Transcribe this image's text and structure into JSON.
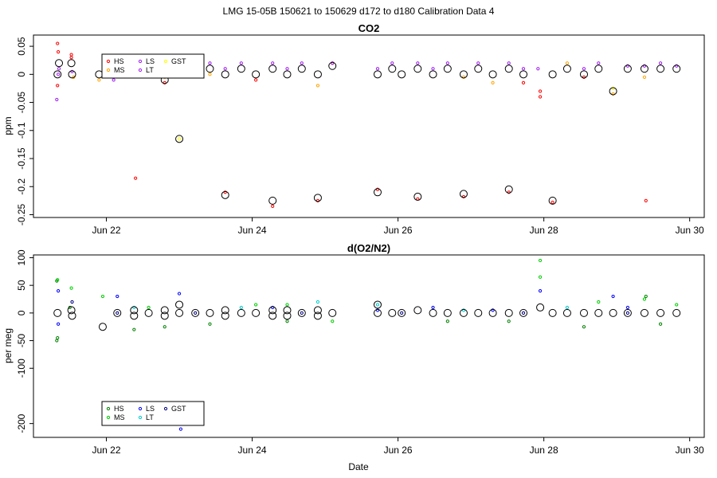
{
  "figure": {
    "title": "LMG   15-05B     150621 to 150629     d172 to d180    Calibration Data 4",
    "xlabel": "Date"
  },
  "chart_data": [
    {
      "type": "scatter",
      "title": "CO2",
      "ylabel": "ppm",
      "ylim": [
        -0.255,
        0.07
      ],
      "yticks": [
        0.05,
        0.0,
        -0.05,
        -0.1,
        -0.15,
        -0.2,
        -0.25
      ],
      "ytick_labels": [
        "0.05",
        "0",
        "-0.05",
        "-0.1",
        "-0.15",
        "-0.2",
        "-0.25"
      ],
      "xlim": [
        21.0,
        30.2
      ],
      "xticks": [
        22,
        24,
        26,
        28,
        30
      ],
      "xtick_labels": [
        "Jun 22",
        "Jun 24",
        "Jun 26",
        "Jun 28",
        "Jun 30"
      ],
      "legend": {
        "position": "top-left",
        "entries": [
          {
            "name": "HS",
            "color": "#ff0000"
          },
          {
            "name": "MS",
            "color": "#ffa500"
          },
          {
            "name": "LS",
            "color": "#a020f0"
          },
          {
            "name": "LT",
            "color": "#a020f0"
          },
          {
            "name": "GST",
            "color": "#ffff00"
          }
        ]
      },
      "means": [
        {
          "x": 21.33,
          "y": 0.0
        },
        {
          "x": 21.35,
          "y": 0.02
        },
        {
          "x": 21.52,
          "y": 0.02
        },
        {
          "x": 21.53,
          "y": 0.0
        },
        {
          "x": 21.9,
          "y": 0.0
        },
        {
          "x": 22.1,
          "y": 0.0
        },
        {
          "x": 22.8,
          "y": -0.01
        },
        {
          "x": 23.0,
          "y": -0.115
        },
        {
          "x": 23.22,
          "y": 0.0
        },
        {
          "x": 23.42,
          "y": 0.01
        },
        {
          "x": 23.63,
          "y": -0.215
        },
        {
          "x": 23.63,
          "y": 0.0
        },
        {
          "x": 23.85,
          "y": 0.01
        },
        {
          "x": 24.05,
          "y": 0.0
        },
        {
          "x": 24.28,
          "y": -0.225
        },
        {
          "x": 24.28,
          "y": 0.01
        },
        {
          "x": 24.48,
          "y": 0.0
        },
        {
          "x": 24.68,
          "y": 0.01
        },
        {
          "x": 24.9,
          "y": -0.22
        },
        {
          "x": 24.9,
          "y": 0.0
        },
        {
          "x": 25.1,
          "y": 0.015
        },
        {
          "x": 25.72,
          "y": -0.21
        },
        {
          "x": 25.72,
          "y": 0.0
        },
        {
          "x": 25.92,
          "y": 0.01
        },
        {
          "x": 26.05,
          "y": 0.0
        },
        {
          "x": 26.27,
          "y": -0.218
        },
        {
          "x": 26.27,
          "y": 0.01
        },
        {
          "x": 26.48,
          "y": 0.0
        },
        {
          "x": 26.68,
          "y": 0.01
        },
        {
          "x": 26.9,
          "y": -0.213
        },
        {
          "x": 26.9,
          "y": 0.0
        },
        {
          "x": 27.1,
          "y": 0.01
        },
        {
          "x": 27.3,
          "y": 0.0
        },
        {
          "x": 27.52,
          "y": -0.205
        },
        {
          "x": 27.52,
          "y": 0.01
        },
        {
          "x": 27.72,
          "y": 0.0
        },
        {
          "x": 28.12,
          "y": -0.225
        },
        {
          "x": 28.12,
          "y": 0.0
        },
        {
          "x": 28.32,
          "y": 0.01
        },
        {
          "x": 28.55,
          "y": 0.0
        },
        {
          "x": 28.75,
          "y": 0.01
        },
        {
          "x": 28.95,
          "y": -0.03
        },
        {
          "x": 29.15,
          "y": 0.01
        },
        {
          "x": 29.38,
          "y": 0.01
        },
        {
          "x": 29.6,
          "y": 0.01
        },
        {
          "x": 29.82,
          "y": 0.01
        }
      ],
      "series": [
        {
          "name": "HS",
          "color": "#ff0000",
          "points": [
            {
              "x": 21.33,
              "y": 0.055
            },
            {
              "x": 21.34,
              "y": 0.04
            },
            {
              "x": 21.33,
              "y": -0.02
            },
            {
              "x": 21.52,
              "y": 0.035
            },
            {
              "x": 21.52,
              "y": 0.03
            },
            {
              "x": 22.4,
              "y": -0.185
            },
            {
              "x": 22.8,
              "y": -0.015
            },
            {
              "x": 23.63,
              "y": -0.21
            },
            {
              "x": 24.28,
              "y": -0.235
            },
            {
              "x": 24.9,
              "y": -0.225
            },
            {
              "x": 25.72,
              "y": -0.205
            },
            {
              "x": 26.27,
              "y": -0.222
            },
            {
              "x": 26.9,
              "y": -0.218
            },
            {
              "x": 27.52,
              "y": -0.21
            },
            {
              "x": 27.72,
              "y": -0.015
            },
            {
              "x": 28.12,
              "y": -0.228
            },
            {
              "x": 27.95,
              "y": -0.03
            },
            {
              "x": 27.95,
              "y": -0.04
            },
            {
              "x": 28.55,
              "y": -0.005
            },
            {
              "x": 29.4,
              "y": -0.225
            },
            {
              "x": 23.05,
              "y": 0.005
            },
            {
              "x": 24.05,
              "y": -0.01
            },
            {
              "x": 25.1,
              "y": 0.02
            }
          ]
        },
        {
          "name": "MS",
          "color": "#ffa500",
          "points": [
            {
              "x": 21.55,
              "y": -0.005
            },
            {
              "x": 21.9,
              "y": -0.01
            },
            {
              "x": 22.8,
              "y": -0.005
            },
            {
              "x": 23.42,
              "y": 0.0
            },
            {
              "x": 24.9,
              "y": -0.02
            },
            {
              "x": 26.9,
              "y": -0.005
            },
            {
              "x": 27.3,
              "y": -0.015
            },
            {
              "x": 28.95,
              "y": -0.035
            },
            {
              "x": 29.38,
              "y": -0.005
            },
            {
              "x": 28.32,
              "y": 0.02
            }
          ]
        },
        {
          "name": "LS",
          "color": "#a020f0",
          "points": [
            {
              "x": 21.32,
              "y": -0.045
            },
            {
              "x": 21.34,
              "y": 0.0
            },
            {
              "x": 21.53,
              "y": 0.005
            },
            {
              "x": 22.1,
              "y": -0.01
            },
            {
              "x": 23.42,
              "y": 0.02
            },
            {
              "x": 23.85,
              "y": 0.02
            },
            {
              "x": 24.28,
              "y": 0.02
            },
            {
              "x": 24.68,
              "y": 0.02
            },
            {
              "x": 25.1,
              "y": 0.02
            },
            {
              "x": 25.92,
              "y": 0.02
            },
            {
              "x": 26.27,
              "y": 0.02
            },
            {
              "x": 26.68,
              "y": 0.02
            },
            {
              "x": 27.1,
              "y": 0.02
            },
            {
              "x": 27.52,
              "y": 0.02
            },
            {
              "x": 27.92,
              "y": 0.01
            },
            {
              "x": 28.75,
              "y": 0.02
            },
            {
              "x": 29.15,
              "y": 0.015
            },
            {
              "x": 29.6,
              "y": 0.02
            },
            {
              "x": 29.82,
              "y": 0.015
            }
          ]
        },
        {
          "name": "LT",
          "color": "#a020f0",
          "points": [
            {
              "x": 21.35,
              "y": 0.01
            },
            {
              "x": 22.1,
              "y": 0.01
            },
            {
              "x": 23.63,
              "y": 0.01
            },
            {
              "x": 24.48,
              "y": 0.01
            },
            {
              "x": 25.72,
              "y": 0.01
            },
            {
              "x": 26.48,
              "y": 0.01
            },
            {
              "x": 27.72,
              "y": 0.01
            },
            {
              "x": 28.55,
              "y": 0.01
            },
            {
              "x": 29.38,
              "y": 0.015
            }
          ]
        },
        {
          "name": "GST",
          "color": "#ffff00",
          "points": [
            {
              "x": 22.0,
              "y": 0.0
            },
            {
              "x": 23.0,
              "y": -0.115
            },
            {
              "x": 28.95,
              "y": -0.025
            }
          ]
        }
      ]
    },
    {
      "type": "scatter",
      "title": "d(O2/N2)",
      "ylabel": "per meg",
      "ylim": [
        -225,
        105
      ],
      "yticks": [
        100,
        50,
        0,
        -50,
        -100,
        -200
      ],
      "ytick_labels": [
        "100",
        "50",
        "0",
        "-50",
        "-100",
        "-200"
      ],
      "xlim": [
        21.0,
        30.2
      ],
      "xticks": [
        22,
        24,
        26,
        28,
        30
      ],
      "xtick_labels": [
        "Jun 22",
        "Jun 24",
        "Jun 26",
        "Jun 28",
        "Jun 30"
      ],
      "legend": {
        "position": "bottom-left",
        "entries": [
          {
            "name": "HS",
            "color": "#008000"
          },
          {
            "name": "MS",
            "color": "#00cc00"
          },
          {
            "name": "LS",
            "color": "#0000ff"
          },
          {
            "name": "LT",
            "color": "#00cccc"
          },
          {
            "name": "GST",
            "color": "#000080"
          }
        ]
      },
      "means": [
        {
          "x": 21.33,
          "y": 0
        },
        {
          "x": 21.52,
          "y": 5
        },
        {
          "x": 21.53,
          "y": -5
        },
        {
          "x": 21.95,
          "y": -25
        },
        {
          "x": 22.15,
          "y": 0
        },
        {
          "x": 22.38,
          "y": 5
        },
        {
          "x": 22.38,
          "y": -5
        },
        {
          "x": 22.58,
          "y": 0
        },
        {
          "x": 22.8,
          "y": 5
        },
        {
          "x": 22.8,
          "y": -5
        },
        {
          "x": 23.0,
          "y": 15
        },
        {
          "x": 23.0,
          "y": 0
        },
        {
          "x": 23.22,
          "y": 0
        },
        {
          "x": 23.42,
          "y": 0
        },
        {
          "x": 23.63,
          "y": 5
        },
        {
          "x": 23.63,
          "y": -5
        },
        {
          "x": 23.85,
          "y": 0
        },
        {
          "x": 24.05,
          "y": 0
        },
        {
          "x": 24.28,
          "y": 5
        },
        {
          "x": 24.28,
          "y": -5
        },
        {
          "x": 24.48,
          "y": 5
        },
        {
          "x": 24.48,
          "y": -5
        },
        {
          "x": 24.68,
          "y": 0
        },
        {
          "x": 24.9,
          "y": 5
        },
        {
          "x": 24.9,
          "y": -5
        },
        {
          "x": 25.1,
          "y": 0
        },
        {
          "x": 25.72,
          "y": 15
        },
        {
          "x": 25.72,
          "y": 0
        },
        {
          "x": 25.92,
          "y": 0
        },
        {
          "x": 26.05,
          "y": 0
        },
        {
          "x": 26.27,
          "y": 5
        },
        {
          "x": 26.48,
          "y": 0
        },
        {
          "x": 26.68,
          "y": 0
        },
        {
          "x": 26.9,
          "y": 0
        },
        {
          "x": 27.1,
          "y": 0
        },
        {
          "x": 27.3,
          "y": 0
        },
        {
          "x": 27.52,
          "y": 0
        },
        {
          "x": 27.72,
          "y": 0
        },
        {
          "x": 27.95,
          "y": 10
        },
        {
          "x": 28.12,
          "y": 0
        },
        {
          "x": 28.32,
          "y": 0
        },
        {
          "x": 28.55,
          "y": 0
        },
        {
          "x": 28.75,
          "y": 0
        },
        {
          "x": 28.95,
          "y": 0
        },
        {
          "x": 29.15,
          "y": 0
        },
        {
          "x": 29.38,
          "y": 0
        },
        {
          "x": 29.6,
          "y": 0
        },
        {
          "x": 29.82,
          "y": 0
        }
      ],
      "series": [
        {
          "name": "HS",
          "color": "#008000",
          "points": [
            {
              "x": 21.32,
              "y": 58
            },
            {
              "x": 21.32,
              "y": -50
            },
            {
              "x": 21.33,
              "y": -45
            },
            {
              "x": 21.5,
              "y": 10
            },
            {
              "x": 22.38,
              "y": -30
            },
            {
              "x": 22.8,
              "y": -25
            },
            {
              "x": 23.42,
              "y": -20
            },
            {
              "x": 24.48,
              "y": -15
            },
            {
              "x": 26.68,
              "y": -15
            },
            {
              "x": 27.52,
              "y": -15
            },
            {
              "x": 28.55,
              "y": -25
            },
            {
              "x": 29.4,
              "y": 30
            },
            {
              "x": 29.6,
              "y": -20
            }
          ]
        },
        {
          "name": "MS",
          "color": "#00cc00",
          "points": [
            {
              "x": 21.33,
              "y": 60
            },
            {
              "x": 21.52,
              "y": 45
            },
            {
              "x": 21.95,
              "y": 30
            },
            {
              "x": 22.58,
              "y": 10
            },
            {
              "x": 24.05,
              "y": 15
            },
            {
              "x": 24.48,
              "y": 15
            },
            {
              "x": 25.1,
              "y": -15
            },
            {
              "x": 27.95,
              "y": 95
            },
            {
              "x": 27.95,
              "y": 65
            },
            {
              "x": 28.75,
              "y": 20
            },
            {
              "x": 29.38,
              "y": 25
            },
            {
              "x": 29.82,
              "y": 15
            }
          ]
        },
        {
          "name": "LS",
          "color": "#0000ff",
          "points": [
            {
              "x": 21.34,
              "y": 40
            },
            {
              "x": 21.34,
              "y": -20
            },
            {
              "x": 22.15,
              "y": 30
            },
            {
              "x": 23.0,
              "y": 35
            },
            {
              "x": 23.02,
              "y": -210
            },
            {
              "x": 24.28,
              "y": 10
            },
            {
              "x": 25.72,
              "y": 5
            },
            {
              "x": 26.48,
              "y": 10
            },
            {
              "x": 27.3,
              "y": 5
            },
            {
              "x": 27.95,
              "y": 40
            },
            {
              "x": 28.95,
              "y": 30
            },
            {
              "x": 29.15,
              "y": 10
            }
          ]
        },
        {
          "name": "LT",
          "color": "#00cccc",
          "points": [
            {
              "x": 22.38,
              "y": 10
            },
            {
              "x": 23.85,
              "y": 10
            },
            {
              "x": 24.9,
              "y": 20
            },
            {
              "x": 25.72,
              "y": 15
            },
            {
              "x": 26.9,
              "y": 5
            },
            {
              "x": 28.32,
              "y": 10
            }
          ]
        },
        {
          "name": "GST",
          "color": "#000080",
          "points": [
            {
              "x": 21.53,
              "y": 20
            },
            {
              "x": 22.15,
              "y": 0
            },
            {
              "x": 23.22,
              "y": 0
            },
            {
              "x": 24.68,
              "y": 0
            },
            {
              "x": 26.05,
              "y": 0
            },
            {
              "x": 27.72,
              "y": 0
            },
            {
              "x": 29.15,
              "y": 0
            }
          ]
        }
      ]
    }
  ]
}
